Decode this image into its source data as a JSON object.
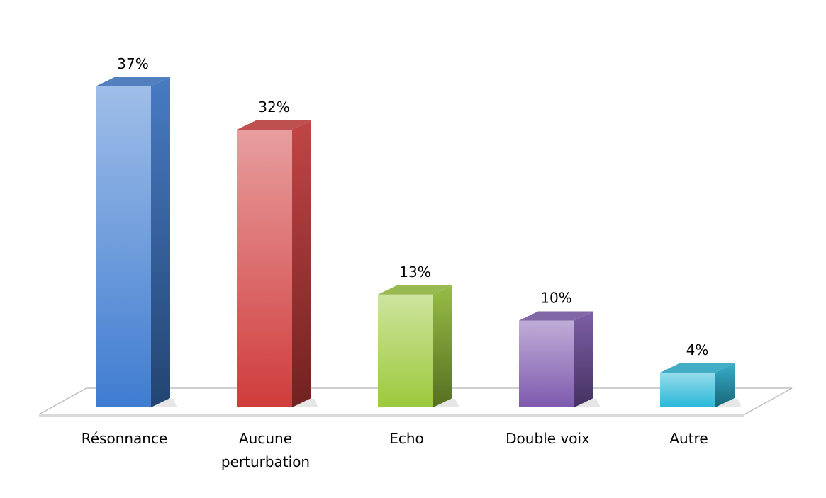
{
  "chart_data": {
    "type": "bar3d",
    "categories": [
      "Résonnance",
      "Aucune perturbation",
      "Echo",
      "Double voix",
      "Autre"
    ],
    "values": [
      37,
      32,
      13,
      10,
      4
    ],
    "value_labels": [
      "37%",
      "32%",
      "13%",
      "10%",
      "4%"
    ],
    "colors": [
      "#3f7cd0",
      "#d03c3c",
      "#9cc93c",
      "#7e5aae",
      "#2bb8d8"
    ]
  }
}
